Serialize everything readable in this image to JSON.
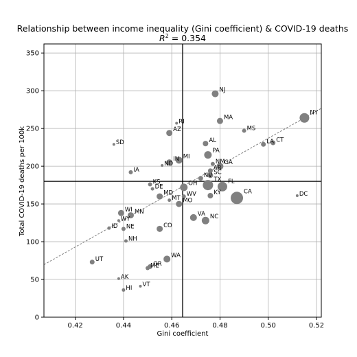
{
  "chart_data": {
    "type": "scatter",
    "title": "Relationship between income inequality (Gini coefficient) & COVID-19 deaths",
    "subtitle_prefix": "R",
    "subtitle_sup": "2",
    "subtitle_value": " = 0.354",
    "xlabel": "Gini coefficient",
    "ylabel": "Total COVID-19 deaths per 100k",
    "xlim": [
      0.407,
      0.522
    ],
    "ylim": [
      0,
      362
    ],
    "xticks": [
      0.42,
      0.44,
      0.46,
      0.48,
      0.5,
      0.52
    ],
    "xtick_labels": [
      "0.42",
      "0.44",
      "0.46",
      "0.48",
      "0.50",
      "0.52"
    ],
    "yticks": [
      0,
      50,
      100,
      150,
      200,
      250,
      300,
      350
    ],
    "ytick_labels": [
      "0",
      "50",
      "100",
      "150",
      "200",
      "250",
      "300",
      "350"
    ],
    "grid": true,
    "mean_lines": {
      "x": 0.4645,
      "y": 180
    },
    "trendline": {
      "slope": 1800,
      "intercept": -663,
      "style": "dashed"
    },
    "marker_color": "#808080",
    "trend_color": "#808080",
    "points": [
      {
        "label": "NJ",
        "x": 0.478,
        "y": 296,
        "size": 5
      },
      {
        "label": "NY",
        "x": 0.515,
        "y": 264,
        "size": 7
      },
      {
        "label": "MA",
        "x": 0.48,
        "y": 260,
        "size": 4.5
      },
      {
        "label": "RI",
        "x": 0.462,
        "y": 257,
        "size": 2
      },
      {
        "label": "MS",
        "x": 0.49,
        "y": 247,
        "size": 3
      },
      {
        "label": "AZ",
        "x": 0.459,
        "y": 244,
        "size": 4.5
      },
      {
        "label": "LA",
        "x": 0.498,
        "y": 229,
        "size": 3.5
      },
      {
        "label": "CT",
        "x": 0.502,
        "y": 231,
        "size": 3.5
      },
      {
        "label": "SD",
        "x": 0.436,
        "y": 229,
        "size": 2
      },
      {
        "label": "AL",
        "x": 0.474,
        "y": 230,
        "size": 4
      },
      {
        "label": "PA",
        "x": 0.475,
        "y": 215,
        "size": 5.5
      },
      {
        "label": "MI",
        "x": 0.463,
        "y": 208,
        "size": 5
      },
      {
        "label": "IN",
        "x": 0.459,
        "y": 205,
        "size": 4.5
      },
      {
        "label": "ND",
        "x": 0.456,
        "y": 201,
        "size": 2
      },
      {
        "label": "NM",
        "x": 0.477,
        "y": 203,
        "size": 3
      },
      {
        "label": "GA",
        "x": 0.48,
        "y": 200,
        "size": 5
      },
      {
        "label": "AR",
        "x": 0.476,
        "y": 194,
        "size": 3.5
      },
      {
        "label": "SC",
        "x": 0.476,
        "y": 188,
        "size": 4
      },
      {
        "label": "IA",
        "x": 0.443,
        "y": 192,
        "size": 3
      },
      {
        "label": "NV",
        "x": 0.472,
        "y": 184,
        "size": 3.5
      },
      {
        "label": "TX",
        "x": 0.475,
        "y": 175,
        "size": 7.5
      },
      {
        "label": "FL",
        "x": 0.481,
        "y": 173,
        "size": 7
      },
      {
        "label": "OH",
        "x": 0.465,
        "y": 172,
        "size": 5.5
      },
      {
        "label": "KS",
        "x": 0.451,
        "y": 176,
        "size": 3
      },
      {
        "label": "DE",
        "x": 0.452,
        "y": 170,
        "size": 2.5
      },
      {
        "label": "CA",
        "x": 0.487,
        "y": 158,
        "size": 9
      },
      {
        "label": "DC",
        "x": 0.512,
        "y": 161,
        "size": 2
      },
      {
        "label": "KY",
        "x": 0.476,
        "y": 161,
        "size": 4
      },
      {
        "label": "MD",
        "x": 0.455,
        "y": 160,
        "size": 4.5
      },
      {
        "label": "MT",
        "x": 0.459,
        "y": 155,
        "size": 2.5
      },
      {
        "label": "WV",
        "x": 0.465,
        "y": 160,
        "size": 3
      },
      {
        "label": "MO",
        "x": 0.463,
        "y": 150,
        "size": 4.5
      },
      {
        "label": "WI",
        "x": 0.439,
        "y": 138,
        "size": 4.5
      },
      {
        "label": "MN",
        "x": 0.443,
        "y": 135,
        "size": 4.5
      },
      {
        "label": "VA",
        "x": 0.469,
        "y": 132,
        "size": 5
      },
      {
        "label": "WY",
        "x": 0.438,
        "y": 128,
        "size": 2
      },
      {
        "label": "NC",
        "x": 0.474,
        "y": 128,
        "size": 5.5
      },
      {
        "label": "ID",
        "x": 0.434,
        "y": 118,
        "size": 2.5
      },
      {
        "label": "NE",
        "x": 0.44,
        "y": 117,
        "size": 3
      },
      {
        "label": "CO",
        "x": 0.455,
        "y": 117,
        "size": 4.5
      },
      {
        "label": "NH",
        "x": 0.441,
        "y": 101,
        "size": 2.5
      },
      {
        "label": "UT",
        "x": 0.427,
        "y": 73,
        "size": 3.5
      },
      {
        "label": "WA",
        "x": 0.458,
        "y": 77,
        "size": 5
      },
      {
        "label": "OR",
        "x": 0.451,
        "y": 67,
        "size": 3.5
      },
      {
        "label": "ME",
        "x": 0.45,
        "y": 65,
        "size": 3
      },
      {
        "label": "AK",
        "x": 0.438,
        "y": 51,
        "size": 2
      },
      {
        "label": "VT",
        "x": 0.447,
        "y": 41,
        "size": 2
      },
      {
        "label": "HI",
        "x": 0.44,
        "y": 36,
        "size": 2.5
      }
    ]
  }
}
